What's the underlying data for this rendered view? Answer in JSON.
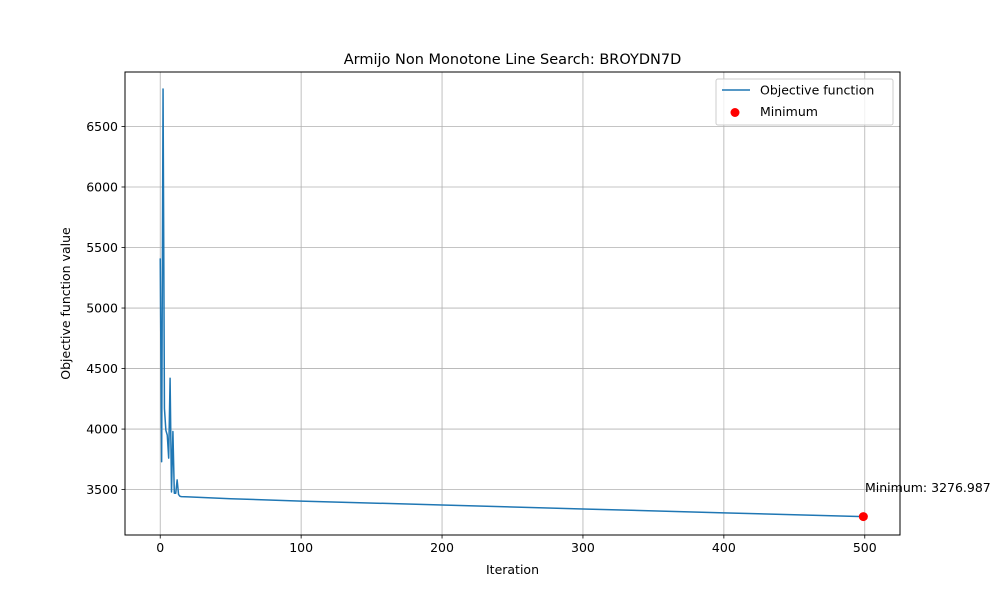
{
  "chart_data": {
    "type": "line",
    "title": "Armijo Non Monotone Line Search: BROYDN7D",
    "xlabel": "Iteration",
    "ylabel": "Objective function value",
    "xlim": [
      -25,
      525
    ],
    "ylim": [
      3125,
      6950
    ],
    "xticks": [
      0,
      100,
      200,
      300,
      400,
      500
    ],
    "yticks": [
      3500,
      4000,
      4500,
      5000,
      5500,
      6000,
      6500
    ],
    "grid": true,
    "legend_position": "top-right",
    "series": [
      {
        "name": "Objective function",
        "color": "#1f77b4",
        "x": [
          0,
          1,
          2,
          3,
          4,
          5,
          6,
          7,
          8,
          9,
          10,
          11,
          12,
          13,
          14,
          15,
          20,
          50,
          100,
          200,
          300,
          400,
          499
        ],
        "y": [
          5410,
          3730,
          6810,
          4170,
          3990,
          3950,
          3760,
          4420,
          3480,
          3980,
          3470,
          3470,
          3580,
          3460,
          3445,
          3442,
          3440,
          3425,
          3405,
          3373,
          3340,
          3308,
          3276.987
        ]
      }
    ],
    "minimum": {
      "name": "Minimum",
      "color": "#ff0000",
      "x": 499,
      "y": 3276.987,
      "annotation": "Minimum: 3276.987"
    }
  }
}
